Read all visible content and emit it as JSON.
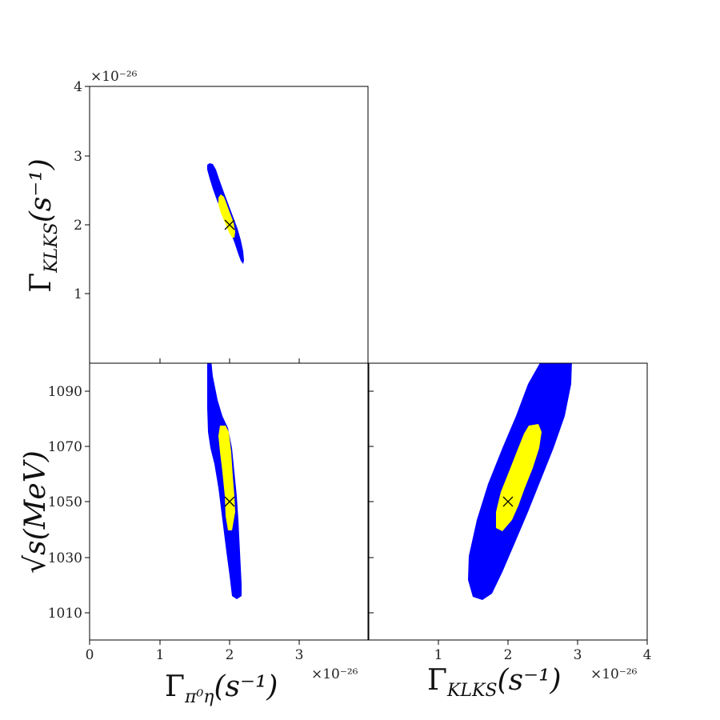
{
  "chart_data": [
    {
      "type": "contour",
      "panel": "top-left",
      "xlim": [
        0,
        4
      ],
      "ylim": [
        0,
        4
      ],
      "y_multiplier": "×10⁻²⁶",
      "yticks": [
        "1",
        "2",
        "3",
        "4"
      ],
      "ylabel_base": "Γ",
      "ylabel_sub": "KLKS",
      "ylabel_unit": "(s⁻¹)",
      "best_fit": {
        "x": 2.0,
        "y": 2.0
      },
      "inner_region": {
        "color": "#ffff00",
        "x_range": [
          1.83,
          2.17
        ],
        "y_range": [
          1.55,
          2.45
        ]
      },
      "outer_region": {
        "color": "#0000ff",
        "x_range": [
          1.7,
          2.18
        ],
        "y_range": [
          1.43,
          2.93
        ]
      }
    },
    {
      "type": "contour",
      "panel": "bottom-left",
      "xlim": [
        0,
        4
      ],
      "ylim": [
        1000,
        1100
      ],
      "xticks": [
        "0",
        "1",
        "2",
        "3"
      ],
      "yticks": [
        "1010",
        "1030",
        "1050",
        "1070",
        "1090"
      ],
      "x_multiplier": "×10⁻²⁶",
      "xlabel_base": "Γ",
      "xlabel_sub": "π⁰η",
      "xlabel_unit": "(s⁻¹)",
      "ylabel_text": "√s(MeV)",
      "best_fit": {
        "x": 2.0,
        "y": 1050
      },
      "inner_region": {
        "color": "#ffff00",
        "x_range": [
          1.85,
          2.05
        ],
        "y_range": [
          1040,
          1077
        ]
      },
      "outer_region": {
        "color": "#0000ff",
        "x_range": [
          1.7,
          2.18
        ],
        "y_range": [
          1015,
          1100
        ]
      }
    },
    {
      "type": "contour",
      "panel": "bottom-right",
      "xlim": [
        0,
        4
      ],
      "ylim": [
        1000,
        1100
      ],
      "xticks": [
        "1",
        "2",
        "3",
        "4"
      ],
      "x_multiplier": "×10⁻²⁶",
      "xlabel_base": "Γ",
      "xlabel_sub": "KLKS",
      "xlabel_unit": "(s⁻¹)",
      "best_fit": {
        "x": 2.0,
        "y": 1050
      },
      "inner_region": {
        "color": "#ffff00",
        "x_range": [
          1.8,
          2.45
        ],
        "y_range": [
          1039,
          1077
        ]
      },
      "outer_region": {
        "color": "#0000ff",
        "x_range": [
          1.5,
          2.9
        ],
        "y_range": [
          1015,
          1100
        ]
      }
    }
  ]
}
